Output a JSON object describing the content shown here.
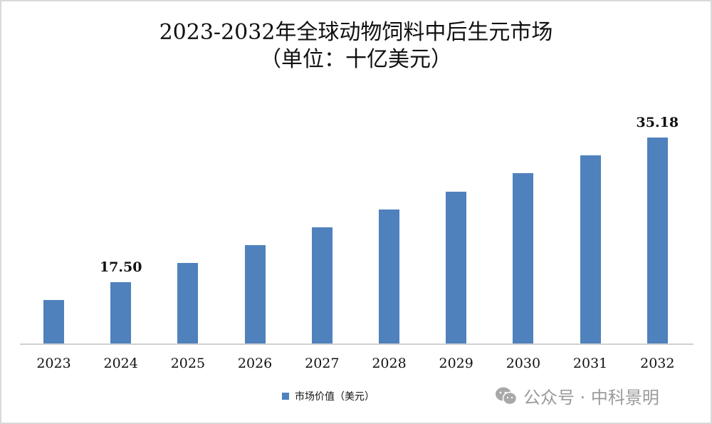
{
  "chart_data": {
    "type": "bar",
    "title": "2023-2032年全球动物饲料中后生元市场",
    "subtitle": "（单位：十亿美元）",
    "categories": [
      "2023",
      "2024",
      "2025",
      "2026",
      "2027",
      "2028",
      "2029",
      "2030",
      "2031",
      "2032"
    ],
    "series": [
      {
        "name": "市场价值（美元）",
        "color": "#4f81bd",
        "values": [
          15.32,
          17.5,
          19.85,
          22.03,
          24.21,
          26.38,
          28.56,
          30.83,
          33.0,
          35.18
        ]
      }
    ],
    "data_labels": [
      {
        "category": "2024",
        "text": "17.50"
      },
      {
        "category": "2032",
        "text": "35.18"
      }
    ],
    "xlabel": "",
    "ylabel": "",
    "ylim": [
      10,
      36
    ],
    "grid": false,
    "legend_position": "bottom"
  },
  "legend": {
    "label": "市场价值（美元）",
    "color": "#4f81bd"
  },
  "watermark": {
    "icon": "wechat-icon",
    "text": "公众号 · 中科景明"
  }
}
